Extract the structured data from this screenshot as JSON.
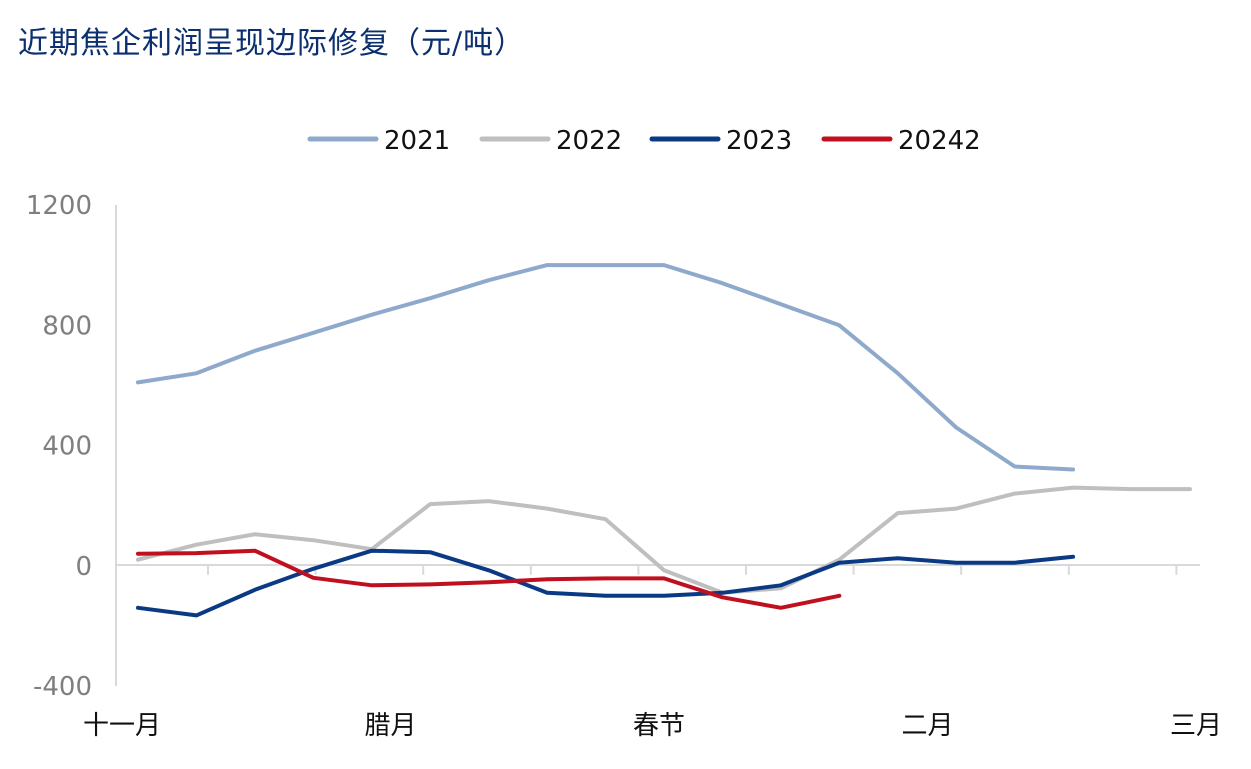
{
  "chart_data": {
    "type": "line",
    "title": "近期焦企利润呈现边际修复（元/吨）",
    "xlabel": "",
    "ylabel": "",
    "ylim": [
      -400,
      1200
    ],
    "yticks": [
      -400,
      0,
      400,
      800,
      1200
    ],
    "x_tick_labels": [
      "十一月",
      "腊月",
      "春节",
      "二月",
      "三月"
    ],
    "x": [
      0,
      1,
      2,
      3,
      4,
      5,
      6,
      7,
      8,
      9,
      10,
      11,
      12,
      13,
      14,
      15,
      16,
      17,
      18
    ],
    "legend_position": "top",
    "grid": false,
    "series": [
      {
        "name": "2021",
        "color": "#8ea9cb",
        "values": [
          610,
          640,
          715,
          775,
          835,
          890,
          950,
          1000,
          1000,
          1000,
          940,
          870,
          800,
          640,
          460,
          330,
          320,
          null,
          null
        ]
      },
      {
        "name": "2022",
        "color": "#bfbfbf",
        "values": [
          20,
          70,
          105,
          85,
          55,
          205,
          215,
          190,
          155,
          -15,
          -90,
          -75,
          20,
          175,
          190,
          240,
          260,
          255,
          255
        ]
      },
      {
        "name": "2023",
        "color": "#0b3a84",
        "values": [
          -140,
          -165,
          -80,
          -10,
          50,
          45,
          -15,
          -90,
          -100,
          -100,
          -90,
          -65,
          10,
          25,
          10,
          10,
          30,
          null,
          null
        ]
      },
      {
        "name": "20242",
        "color": "#c0101f",
        "values": [
          40,
          42,
          50,
          -40,
          -65,
          -62,
          -55,
          -45,
          -42,
          -42,
          -105,
          -140,
          -100,
          null,
          null,
          null,
          null,
          null,
          null
        ]
      }
    ]
  }
}
